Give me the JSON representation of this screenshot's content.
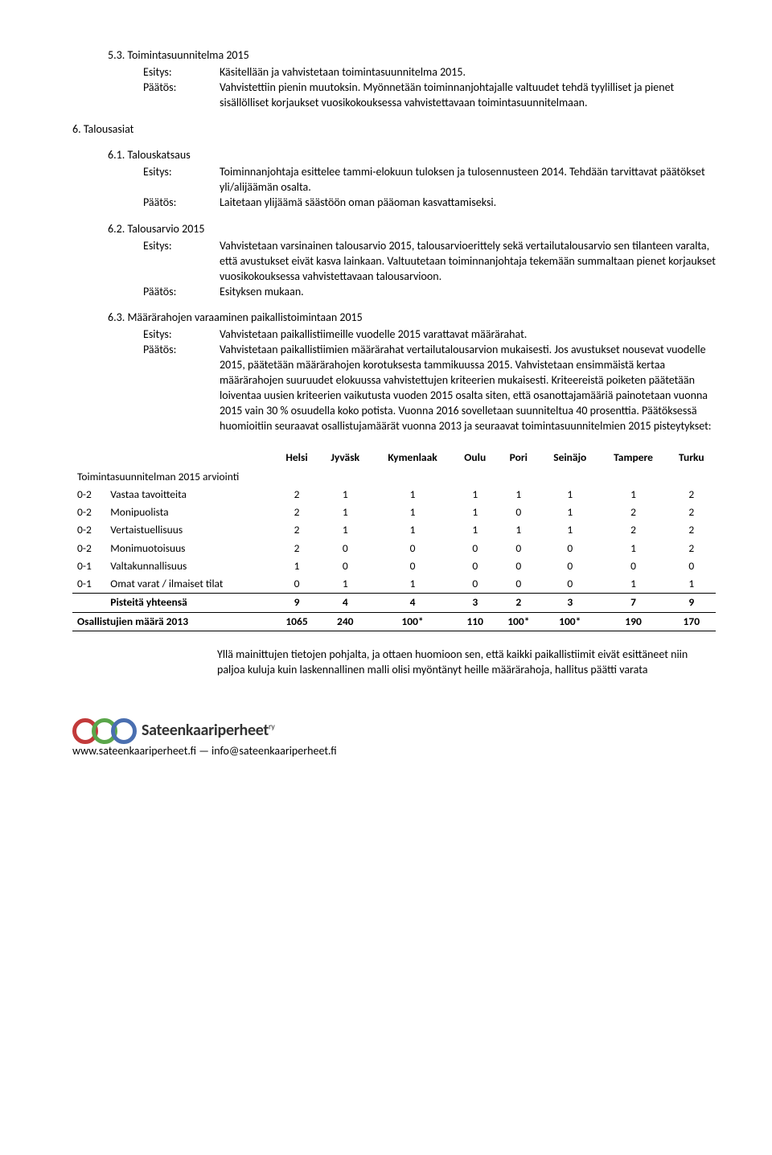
{
  "sections": {
    "s53": {
      "num": "5.3.",
      "title": "Toimintasuunnitelma 2015",
      "esitys_label": "Esitys:",
      "esitys": "Käsitellään ja vahvistetaan toimintasuunnitelma 2015.",
      "paatos_label": "Päätös:",
      "paatos": "Vahvistettiin pienin muutoksin. Myönnetään toiminnanjohtajalle valtuudet tehdä tyylilliset ja pienet sisällölliset korjaukset vuosikokouksessa vahvistettavaan toimintasuunnitelmaan."
    },
    "s6": {
      "num": "6.",
      "title": "Talousasiat"
    },
    "s61": {
      "num": "6.1.",
      "title": "Talouskatsaus",
      "esitys_label": "Esitys:",
      "esitys": "Toiminnanjohtaja esittelee tammi-elokuun tuloksen ja tulosennusteen 2014. Tehdään tarvittavat päätökset yli/alijäämän osalta.",
      "paatos_label": "Päätös:",
      "paatos": "Laitetaan ylijäämä säästöön oman pääoman kasvattamiseksi."
    },
    "s62": {
      "num": "6.2.",
      "title": "Talousarvio 2015",
      "esitys_label": "Esitys:",
      "esitys": "Vahvistetaan varsinainen talousarvio 2015, talousarvioerittely sekä vertailutalousarvio sen tilanteen varalta, että avustukset eivät kasva lainkaan. Valtuutetaan toiminnanjohtaja tekemään summaltaan pienet korjaukset vuosikokouksessa vahvistettavaan talousarvioon.",
      "paatos_label": "Päätös:",
      "paatos": "Esityksen mukaan."
    },
    "s63": {
      "num": "6.3.",
      "title": "Määrärahojen varaaminen paikallistoimintaan 2015",
      "esitys_label": "Esitys:",
      "esitys": "Vahvistetaan paikallistiimeille vuodelle 2015 varattavat määrärahat.",
      "paatos_label": "Päätös:",
      "paatos": "Vahvistetaan paikallistiimien määrärahat vertailutalousarvion mukaisesti. Jos avustukset nousevat vuodelle 2015, päätetään määrärahojen korotuksesta tammikuussa 2015. Vahvistetaan ensimmäistä kertaa määrärahojen suuruudet elokuussa vahvistettujen kriteerien mukaisesti. Kriteereistä poiketen päätetään loiventaa uusien kriteerien vaikutusta vuoden 2015 osalta siten, että osanottajamääriä painotetaan vuonna 2015 vain 30 % osuudella koko potista. Vuonna 2016 sovelletaan suunniteltua 40 prosenttia. Päätöksessä huomioitiin seuraavat osallistujamäärät vuonna 2013 ja seuraavat toimintasuunnitelmien 2015 pisteytykset:"
    }
  },
  "table": {
    "headers": [
      "",
      "",
      "Helsi",
      "Jyväsk",
      "Kymenlaak",
      "Oulu",
      "Pori",
      "Seinäjo",
      "Tampere",
      "Turku"
    ],
    "subhead": "Toimintasuunnitelman 2015 arviointi",
    "rows": [
      {
        "range": "0-2",
        "label": "Vastaa tavoitteita",
        "v": [
          "2",
          "1",
          "1",
          "1",
          "1",
          "1",
          "1",
          "2"
        ]
      },
      {
        "range": "0-2",
        "label": "Monipuolista",
        "v": [
          "2",
          "1",
          "1",
          "1",
          "0",
          "1",
          "2",
          "2"
        ]
      },
      {
        "range": "0-2",
        "label": "Vertaistuellisuus",
        "v": [
          "2",
          "1",
          "1",
          "1",
          "1",
          "1",
          "2",
          "2"
        ]
      },
      {
        "range": "0-2",
        "label": "Monimuotoisuus",
        "v": [
          "2",
          "0",
          "0",
          "0",
          "0",
          "0",
          "1",
          "2"
        ]
      },
      {
        "range": "0-1",
        "label": "Valtakunnallisuus",
        "v": [
          "1",
          "0",
          "0",
          "0",
          "0",
          "0",
          "0",
          "0"
        ]
      },
      {
        "range": "0-1",
        "label": "Omat varat / ilmaiset tilat",
        "v": [
          "0",
          "1",
          "1",
          "0",
          "0",
          "0",
          "1",
          "1"
        ]
      }
    ],
    "total_label": "Pisteitä yhteensä",
    "total": [
      "9",
      "4",
      "4",
      "3",
      "2",
      "3",
      "7",
      "9"
    ],
    "osall_label": "Osallistujien määrä 2013",
    "osall": [
      "1065",
      "240",
      "100*",
      "110",
      "100*",
      "100*",
      "190",
      "170"
    ]
  },
  "after_table": "Yllä mainittujen tietojen pohjalta, ja ottaen huomioon sen, että kaikki paikallistiimit eivät esittäneet niin paljoa kuluja kuin laskennallinen malli olisi myöntänyt heille määrärahoja, hallitus päätti varata",
  "logo": {
    "text": "Sateenkaariperheet",
    "sup": "ry",
    "ring_colors": [
      "#c23a3a",
      "#5aa64a",
      "#4a6fb0"
    ]
  },
  "footer_url": "www.sateenkaariperheet.fi — info@sateenkaariperheet.fi"
}
